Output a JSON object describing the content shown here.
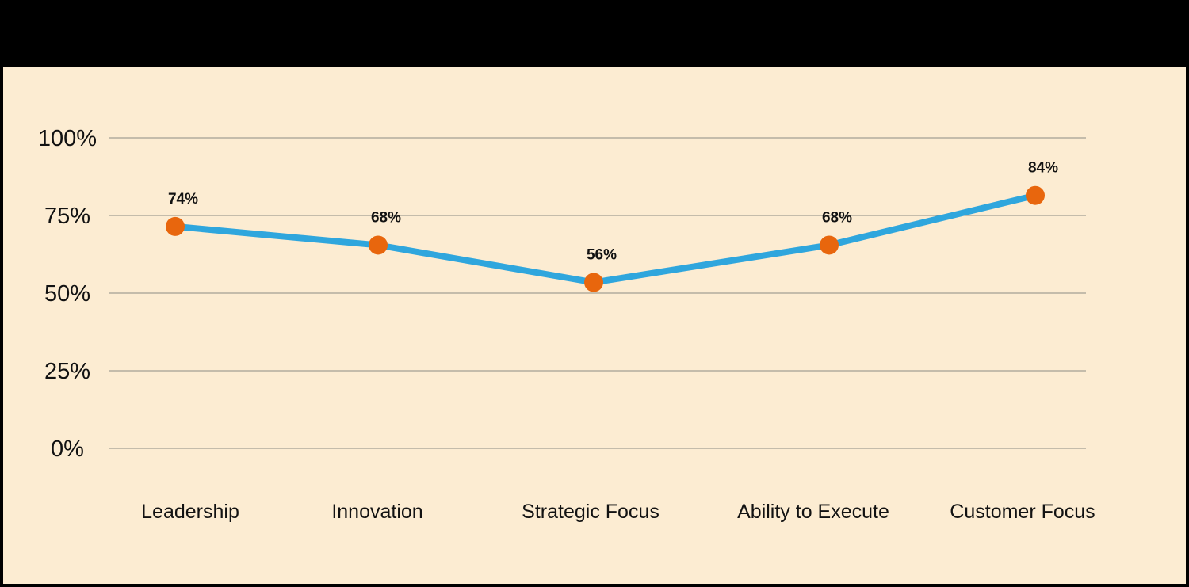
{
  "page": {
    "background_color": "#000000",
    "panel_background_color": "#fcecd2"
  },
  "chart_data": {
    "type": "line",
    "title": "",
    "categories": [
      "Leadership",
      "Innovation",
      "Strategic Focus",
      "Ability to Execute",
      "Customer Focus"
    ],
    "values": [
      74,
      68,
      56,
      68,
      84
    ],
    "point_labels": [
      "74%",
      "68%",
      "56%",
      "68%",
      "84%"
    ],
    "yticks": [
      "100%",
      "75%",
      "50%",
      "25%",
      "0%"
    ],
    "ytick_values": [
      100,
      75,
      50,
      25,
      0
    ],
    "ylim": [
      0,
      100
    ],
    "xlabel": "",
    "ylabel": "",
    "grid": "horizontal-only",
    "legend": "none",
    "colors": {
      "line": "#2fa6dd",
      "point": "#e8660d",
      "gridline": "#8c8c84",
      "text": "#121212"
    }
  }
}
